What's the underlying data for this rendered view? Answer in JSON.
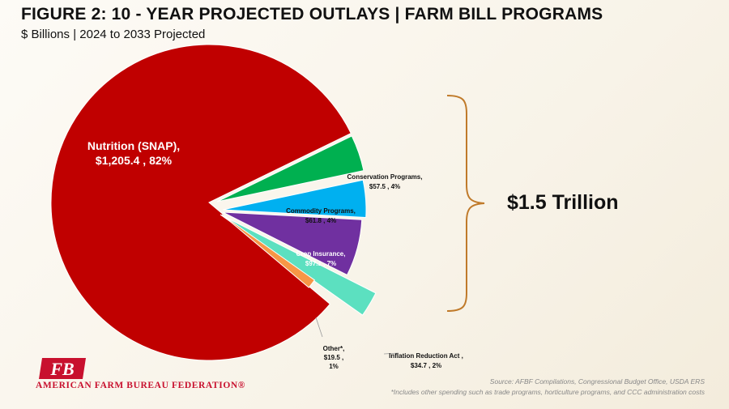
{
  "header": {
    "title": "FIGURE 2: 10 - YEAR PROJECTED OUTLAYS | FARM BILL PROGRAMS",
    "subtitle": "$ Billions | 2024 to 2033 Projected"
  },
  "chart_data": {
    "type": "pie",
    "title": "FIGURE 2: 10 - YEAR PROJECTED OUTLAYS | FARM BILL PROGRAMS",
    "subtitle": "$ Billions | 2024 to 2033 Projected",
    "slices": [
      {
        "label": "Nutrition (SNAP),",
        "value": 1205.4,
        "value_text": "$1,205.4 , 82%",
        "percent": 82,
        "color": "#c00000"
      },
      {
        "label": "Conservation Programs,",
        "value": 57.5,
        "value_text": "$57.5 , 4%",
        "percent": 4,
        "color": "#00b050"
      },
      {
        "label": "Commodity Programs,",
        "value": 61.8,
        "value_text": "$61.8 , 4%",
        "percent": 4,
        "color": "#00b0f0"
      },
      {
        "label": "Crop Insurance,",
        "value": 97.1,
        "value_text": "$97.1 , 7%",
        "percent": 7,
        "color": "#7030a0"
      },
      {
        "label": "Inflation Reduction Act ,",
        "value": 34.7,
        "value_text": "$34.7 , 2%",
        "percent": 2,
        "color": "#5ce0c0"
      },
      {
        "label": "Other*,",
        "value": 19.5,
        "value_text": "$19.5 ,",
        "value_text2": "1%",
        "percent": 1,
        "color": "#f79646"
      }
    ],
    "total_label": "$1.5 Trillion",
    "bracket_color": "#c07a2a"
  },
  "branding": {
    "logo_text": "AMERICAN FARM BUREAU FEDERATION®",
    "logo_mark": "FB",
    "logo_color": "#c8102e"
  },
  "footer": {
    "source": "Source: AFBF Compilations, Congressional Budget Office, USDA ERS",
    "note": "*Includes other spending such as trade programs, horticulture programs, and CCC administration costs"
  }
}
